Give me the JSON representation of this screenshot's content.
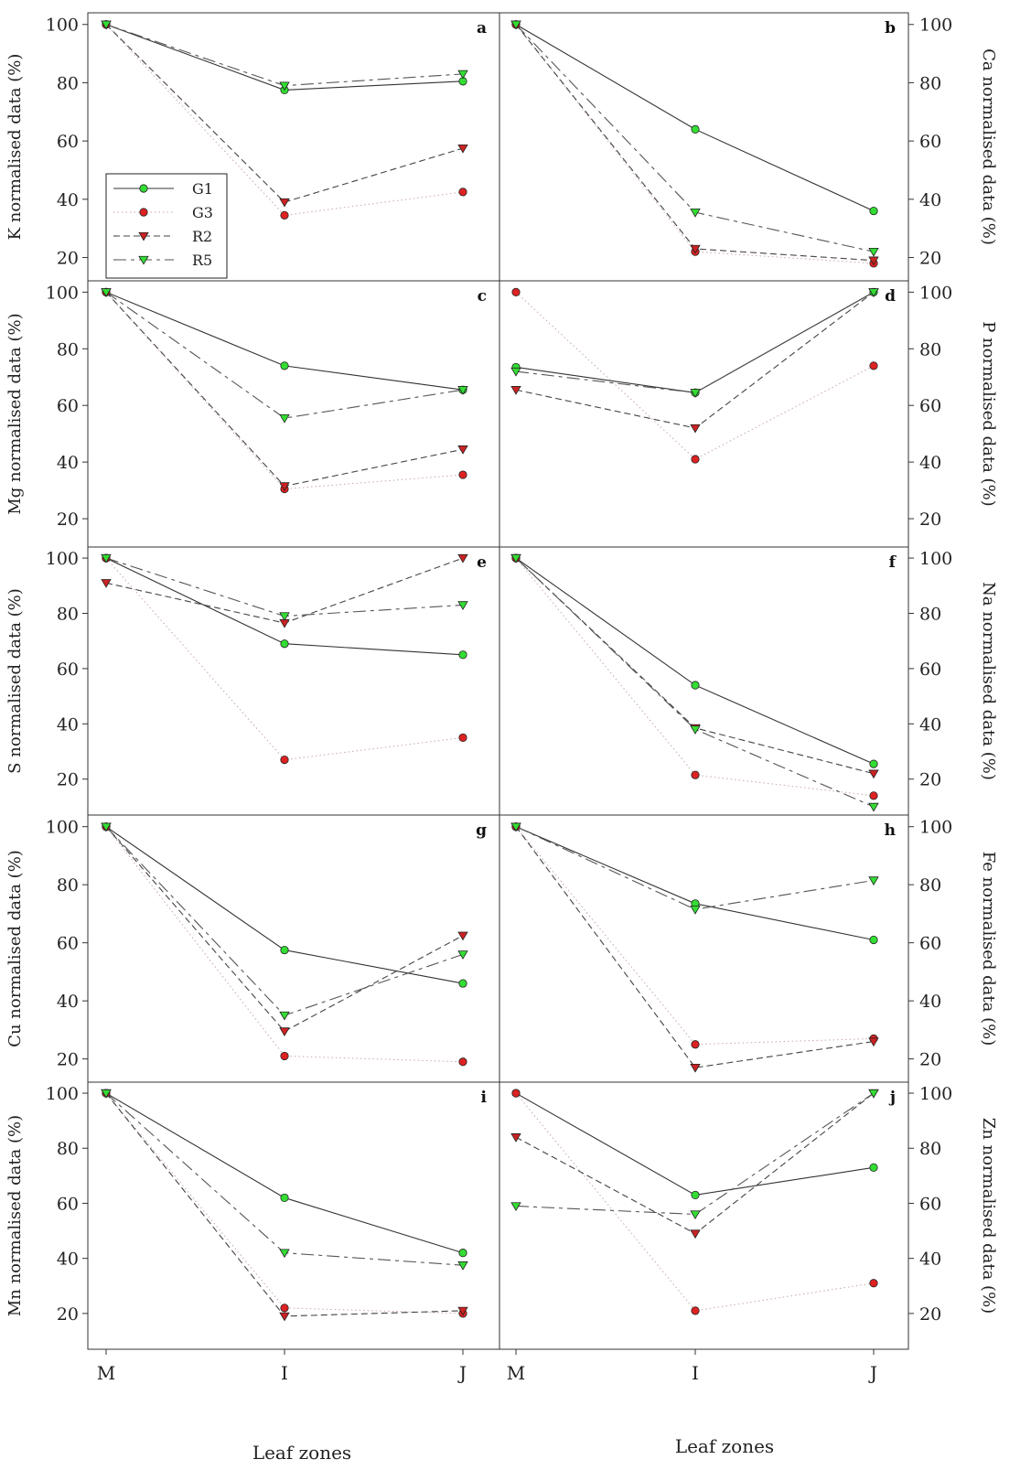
{
  "figure": {
    "x_title_left": "Leaf zones",
    "x_title_right": "Leaf zones",
    "x_categories": [
      "M",
      "I",
      "J"
    ],
    "legend": [
      {
        "label": "G1",
        "color": "#33dd33",
        "marker": "circle",
        "line": "solid"
      },
      {
        "label": "G3",
        "color": "#dd2222",
        "marker": "circle",
        "line": "dotted"
      },
      {
        "label": "R2",
        "color": "#cc2222",
        "marker": "triangle-down",
        "line": "dashed"
      },
      {
        "label": "R5",
        "color": "#33dd33",
        "marker": "triangle-down",
        "line": "long-dash"
      }
    ]
  },
  "chart_data": [
    {
      "type": "line",
      "panel": "a",
      "ylabel": "K normalised data (%)",
      "yticks": [
        20,
        40,
        60,
        80,
        100
      ],
      "ylim": [
        12,
        104
      ],
      "categories": [
        "M",
        "I",
        "J"
      ],
      "series": [
        {
          "name": "G1",
          "values": [
            100,
            77.5,
            80.5
          ]
        },
        {
          "name": "G3",
          "values": [
            100,
            34.5,
            42.5
          ]
        },
        {
          "name": "R2",
          "values": [
            100,
            39,
            57.5
          ]
        },
        {
          "name": "R5",
          "values": [
            100,
            79,
            83
          ]
        }
      ]
    },
    {
      "type": "line",
      "panel": "b",
      "ylabel": "Ca normalised data (%)",
      "yticks": [
        20,
        40,
        60,
        80,
        100
      ],
      "ylim": [
        12,
        104
      ],
      "categories": [
        "M",
        "I",
        "J"
      ],
      "series": [
        {
          "name": "G1",
          "values": [
            100,
            64,
            36
          ]
        },
        {
          "name": "G3",
          "values": [
            100,
            22,
            18
          ]
        },
        {
          "name": "R2",
          "values": [
            100,
            23,
            19
          ]
        },
        {
          "name": "R5",
          "values": [
            100,
            35.5,
            22
          ]
        }
      ]
    },
    {
      "type": "line",
      "panel": "c",
      "ylabel": "Mg normalised data (%)",
      "yticks": [
        20,
        40,
        60,
        80,
        100
      ],
      "ylim": [
        10,
        104
      ],
      "categories": [
        "M",
        "I",
        "J"
      ],
      "series": [
        {
          "name": "G1",
          "values": [
            100,
            74,
            65.5
          ]
        },
        {
          "name": "G3",
          "values": [
            100,
            30.5,
            35.5
          ]
        },
        {
          "name": "R2",
          "values": [
            100,
            31.5,
            44.5
          ]
        },
        {
          "name": "R5",
          "values": [
            100,
            55.5,
            65.5
          ]
        }
      ]
    },
    {
      "type": "line",
      "panel": "d",
      "ylabel": "P normalised data (%)",
      "yticks": [
        20,
        40,
        60,
        80,
        100
      ],
      "ylim": [
        10,
        104
      ],
      "categories": [
        "M",
        "I",
        "J"
      ],
      "series": [
        {
          "name": "G1",
          "values": [
            73.5,
            64.5,
            100
          ]
        },
        {
          "name": "G3",
          "values": [
            100,
            41,
            74
          ]
        },
        {
          "name": "R2",
          "values": [
            65.5,
            52,
            100
          ]
        },
        {
          "name": "R5",
          "values": [
            72,
            64.5,
            100
          ]
        }
      ]
    },
    {
      "type": "line",
      "panel": "e",
      "ylabel": "S normalised data (%)",
      "yticks": [
        20,
        40,
        60,
        80,
        100
      ],
      "ylim": [
        7,
        104
      ],
      "categories": [
        "M",
        "I",
        "J"
      ],
      "series": [
        {
          "name": "G1",
          "values": [
            100,
            69,
            65
          ]
        },
        {
          "name": "G3",
          "values": [
            100,
            27,
            35
          ]
        },
        {
          "name": "R2",
          "values": [
            91,
            76.5,
            100
          ]
        },
        {
          "name": "R5",
          "values": [
            100,
            79,
            83
          ]
        }
      ]
    },
    {
      "type": "line",
      "panel": "f",
      "ylabel": "Na normalised data (%)",
      "yticks": [
        20,
        40,
        60,
        80,
        100
      ],
      "ylim": [
        7,
        104
      ],
      "categories": [
        "M",
        "I",
        "J"
      ],
      "series": [
        {
          "name": "G1",
          "values": [
            100,
            54,
            25.5
          ]
        },
        {
          "name": "G3",
          "values": [
            100,
            21.5,
            14
          ]
        },
        {
          "name": "R2",
          "values": [
            100,
            38.5,
            22
          ]
        },
        {
          "name": "R5",
          "values": [
            100,
            38,
            10
          ]
        }
      ]
    },
    {
      "type": "line",
      "panel": "g",
      "ylabel": "Cu normalised data (%)",
      "yticks": [
        20,
        40,
        60,
        80,
        100
      ],
      "ylim": [
        12,
        104
      ],
      "categories": [
        "M",
        "I",
        "J"
      ],
      "series": [
        {
          "name": "G1",
          "values": [
            100,
            57.5,
            46
          ]
        },
        {
          "name": "G3",
          "values": [
            100,
            21,
            19
          ]
        },
        {
          "name": "R2",
          "values": [
            100,
            29.5,
            62.5
          ]
        },
        {
          "name": "R5",
          "values": [
            100,
            35,
            56
          ]
        }
      ]
    },
    {
      "type": "line",
      "panel": "h",
      "ylabel": "Fe normalised data (%)",
      "yticks": [
        20,
        40,
        60,
        80,
        100
      ],
      "ylim": [
        12,
        104
      ],
      "categories": [
        "M",
        "I",
        "J"
      ],
      "series": [
        {
          "name": "G1",
          "values": [
            100,
            73.5,
            61
          ]
        },
        {
          "name": "G3",
          "values": [
            100,
            25,
            27
          ]
        },
        {
          "name": "R2",
          "values": [
            100,
            17,
            26
          ]
        },
        {
          "name": "R5",
          "values": [
            100,
            71.5,
            81.5
          ]
        }
      ]
    },
    {
      "type": "line",
      "panel": "i",
      "ylabel": "Mn normalised data (%)",
      "yticks": [
        20,
        40,
        60,
        80,
        100
      ],
      "ylim": [
        7,
        104
      ],
      "categories": [
        "M",
        "I",
        "J"
      ],
      "series": [
        {
          "name": "G1",
          "values": [
            100,
            62,
            42
          ]
        },
        {
          "name": "G3",
          "values": [
            100,
            22,
            20
          ]
        },
        {
          "name": "R2",
          "values": [
            100,
            19,
            21
          ]
        },
        {
          "name": "R5",
          "values": [
            100,
            42,
            37.5
          ]
        }
      ]
    },
    {
      "type": "line",
      "panel": "j",
      "ylabel": "Zn normalised data (%)",
      "yticks": [
        20,
        40,
        60,
        80,
        100
      ],
      "ylim": [
        7,
        104
      ],
      "categories": [
        "M",
        "I",
        "J"
      ],
      "series": [
        {
          "name": "G1",
          "values": [
            100,
            63,
            73
          ]
        },
        {
          "name": "G3",
          "values": [
            100,
            21,
            31
          ]
        },
        {
          "name": "R2",
          "values": [
            84,
            49,
            100
          ]
        },
        {
          "name": "R5",
          "values": [
            59,
            56,
            100
          ]
        }
      ]
    }
  ]
}
